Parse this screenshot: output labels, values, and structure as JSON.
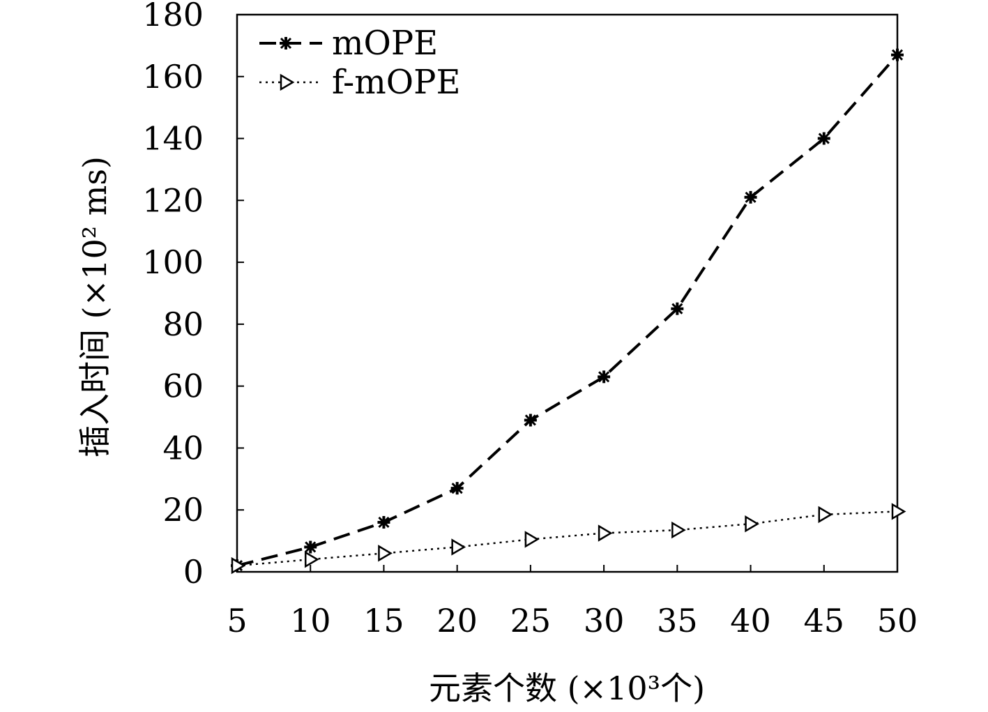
{
  "chart_data": {
    "type": "line",
    "title": "",
    "xlabel": "元素个数 (×10³个)",
    "ylabel": "插入时间 (×10² ms)",
    "x": [
      5,
      10,
      15,
      20,
      25,
      30,
      35,
      40,
      45,
      50
    ],
    "xticks": [
      "5",
      "10",
      "15",
      "20",
      "25",
      "30",
      "35",
      "40",
      "45",
      "50"
    ],
    "ylim": [
      0,
      180
    ],
    "yticks": [
      "0",
      "20",
      "40",
      "60",
      "80",
      "100",
      "120",
      "140",
      "160",
      "180"
    ],
    "grid": false,
    "legend_position": "top-left",
    "series": [
      {
        "name": "mOPE",
        "style": "dashed",
        "marker": "star",
        "color": "#000000",
        "values": [
          2,
          8,
          16,
          27,
          49,
          63,
          85,
          121,
          140,
          167
        ]
      },
      {
        "name": "f-mOPE",
        "style": "dotted",
        "marker": "triangle-right",
        "color": "#000000",
        "values": [
          2,
          4,
          6,
          8,
          10.5,
          12.5,
          13.5,
          15.5,
          18.5,
          19.5
        ]
      }
    ]
  }
}
